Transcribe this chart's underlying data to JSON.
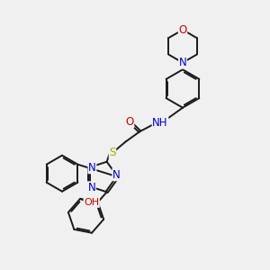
{
  "bg_color": "#f0f0f0",
  "bond_color": "#1a1a1a",
  "bond_width": 1.4,
  "atom_colors": {
    "N": "#0000cc",
    "O": "#cc0000",
    "S": "#aaaa00",
    "H": "#008080",
    "C": "#1a1a1a"
  },
  "font_size": 8.5
}
